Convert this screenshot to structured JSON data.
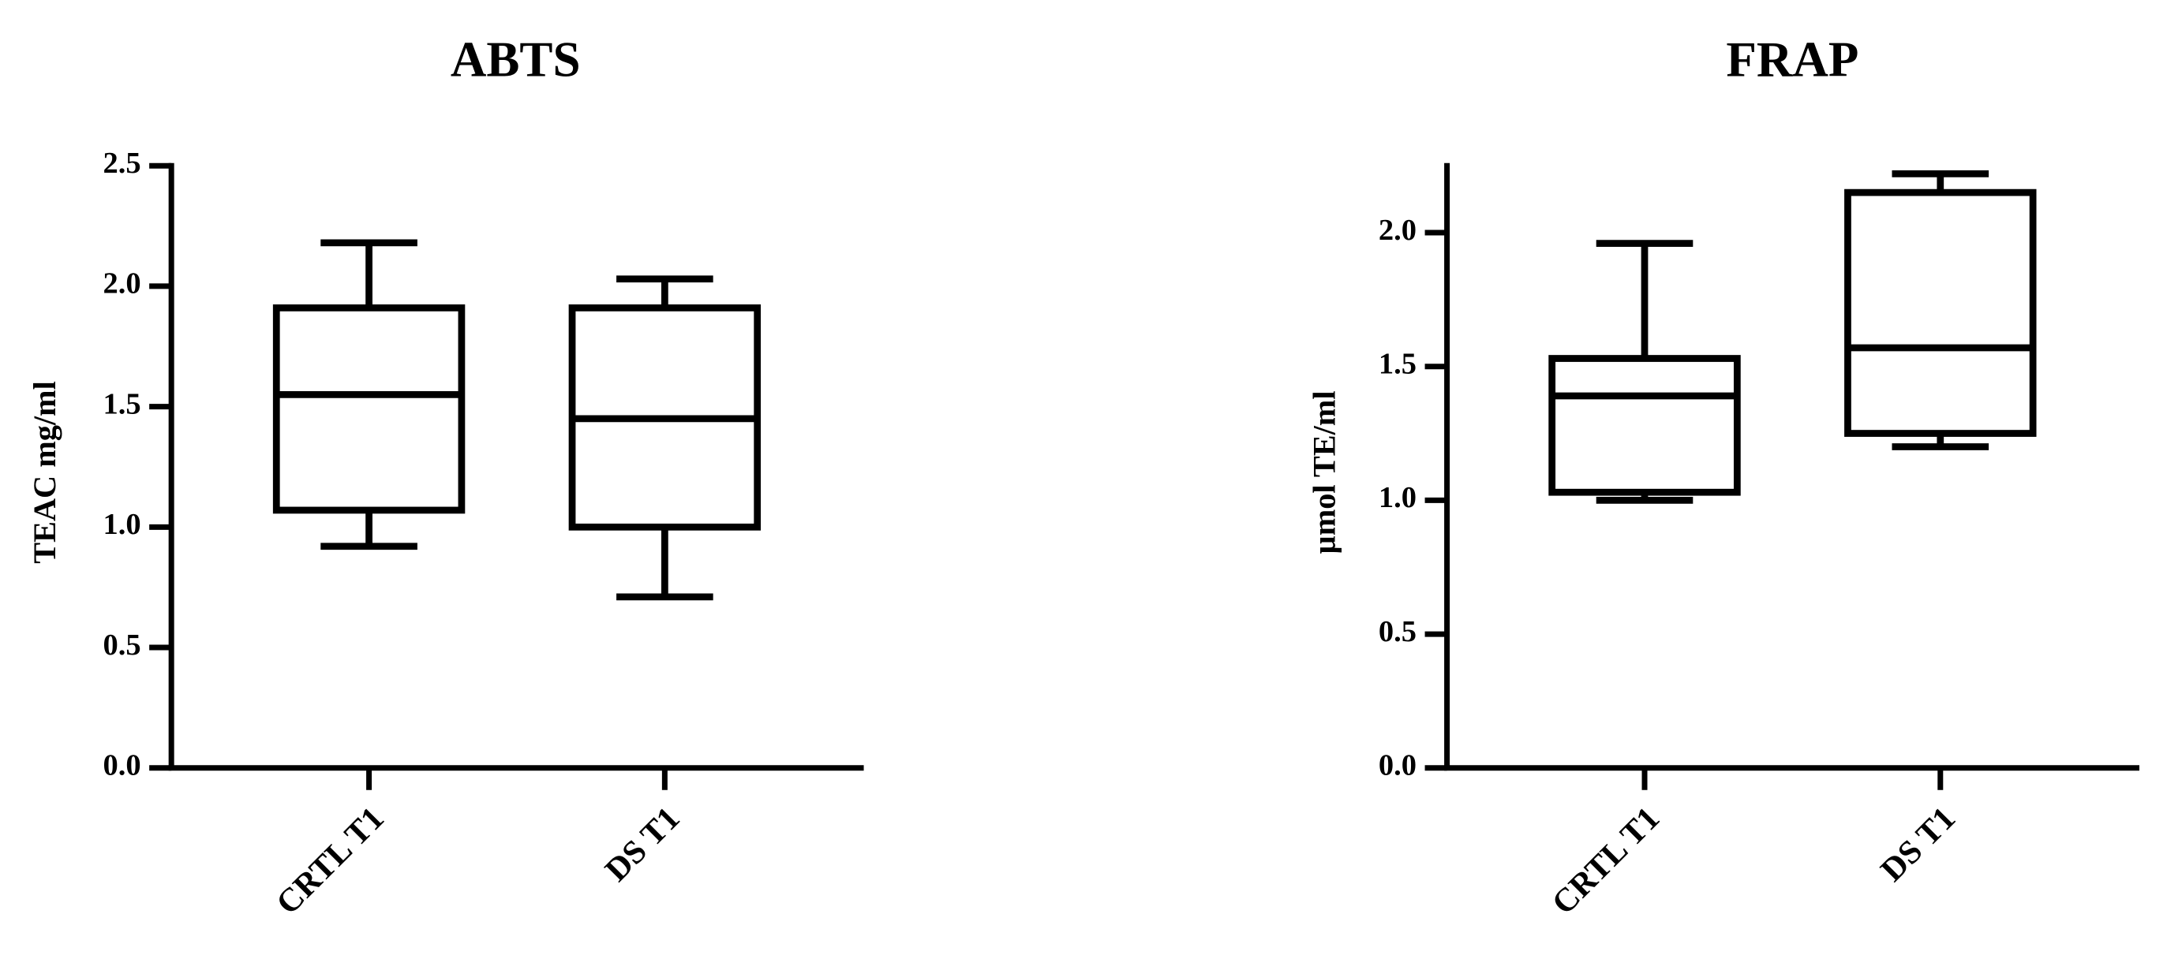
{
  "chart_data": [
    {
      "type": "box",
      "title": "ABTS",
      "ylabel": "TEAC mg/ml",
      "categories": [
        "CRTL T1",
        "DS T1"
      ],
      "boxes": [
        {
          "min": 0.92,
          "q1": 1.07,
          "median": 1.55,
          "q3": 1.91,
          "max": 2.18
        },
        {
          "min": 0.71,
          "q1": 1.0,
          "median": 1.45,
          "q3": 1.91,
          "max": 2.03
        }
      ],
      "color": "#000000",
      "ylim": [
        0,
        2.5
      ],
      "yticks": [
        {
          "value": 0,
          "label": "0.0"
        },
        0.5,
        {
          "value": 1,
          "label": "1.0"
        },
        1.5,
        {
          "value": 2,
          "label": "2.0"
        },
        2.5
      ]
    },
    {
      "type": "box",
      "title": "FRAP",
      "ylabel": "µmol TE/ml",
      "categories": [
        "CRTL T1",
        "DS T1"
      ],
      "boxes": [
        {
          "min": 1.0,
          "q1": 1.03,
          "median": 1.39,
          "q3": 1.53,
          "max": 1.96
        },
        {
          "min": 1.2,
          "q1": 1.25,
          "median": 1.57,
          "q3": 2.15,
          "max": 2.22
        }
      ],
      "color": "#000000",
      "ylim": [
        0,
        2.25
      ],
      "yticks": [
        {
          "value": 0,
          "label": "0.0"
        },
        0.5,
        {
          "value": 1,
          "label": "1.0"
        },
        1.5,
        {
          "value": 2,
          "label": "2.0"
        }
      ]
    }
  ]
}
